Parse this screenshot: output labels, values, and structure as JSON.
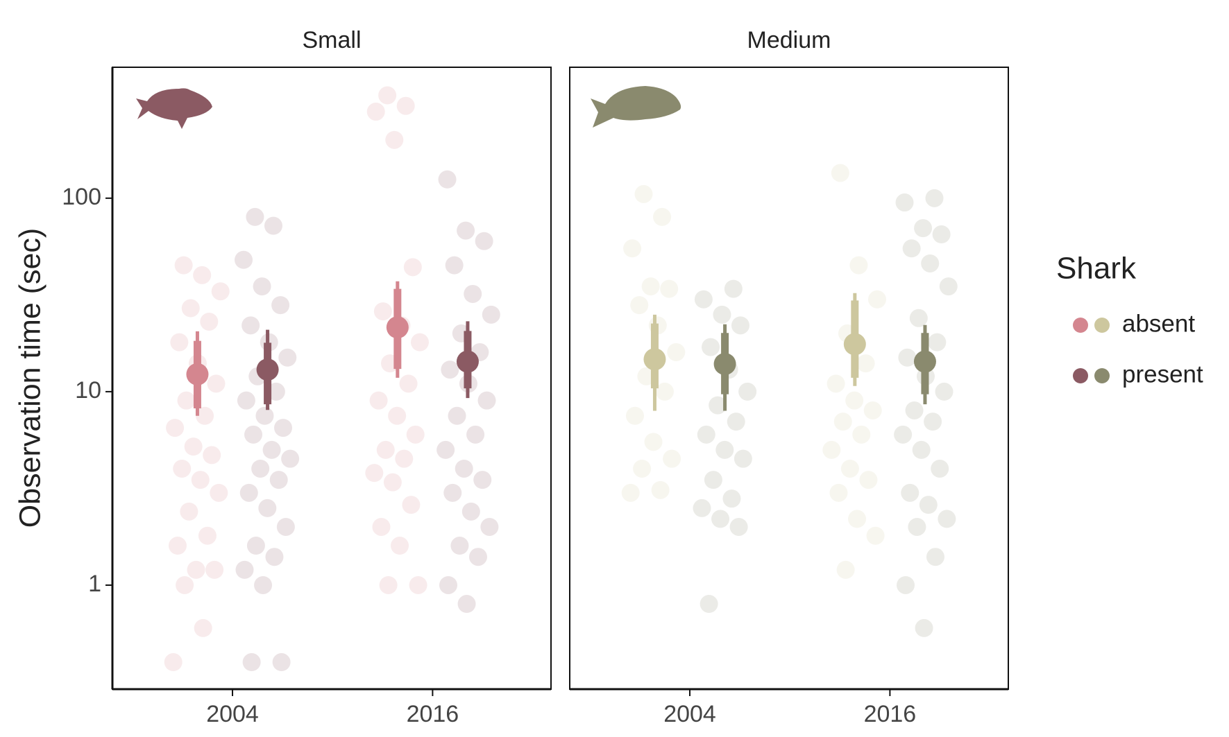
{
  "chart_data": [
    {
      "type": "pointrange",
      "title": "Small",
      "y_label": "Observation time (sec)",
      "x": [
        2004,
        2016
      ],
      "xlim": [
        1996.8,
        2023.1
      ],
      "xticks": [
        2004,
        2016
      ],
      "ylim": [
        0.29,
        475
      ],
      "yticks": [
        1,
        10,
        100
      ],
      "yscale": "log",
      "series": [
        {
          "name": "absent",
          "color": "#d4868f",
          "values": [
            12.3,
            21.5
          ],
          "inner_lower": [
            8.2,
            13.1
          ],
          "inner_upper": [
            18.3,
            34.0
          ],
          "lower": [
            7.5,
            11.8
          ],
          "upper": [
            20.5,
            37.2
          ],
          "points": [
            [
              0.4,
              0.6,
              1.0,
              1.2,
              1.2,
              1.6,
              1.8,
              2.4,
              3,
              3.5,
              4,
              4.7,
              5.2,
              6.5,
              7.5,
              9,
              11,
              14,
              18,
              23,
              27,
              33,
              40,
              45
            ],
            [
              1,
              1,
              1.6,
              2,
              2.6,
              3.4,
              3.8,
              4.5,
              5,
              6,
              7.5,
              9,
              11,
              14,
              18,
              22,
              26,
              44,
              200,
              280,
              300,
              340
            ]
          ]
        },
        {
          "name": "present",
          "color": "#8b5a63",
          "values": [
            13.0,
            14.3
          ],
          "inner_lower": [
            8.6,
            10.4
          ],
          "inner_upper": [
            17.9,
            20.6
          ],
          "lower": [
            8.05,
            9.27
          ],
          "upper": [
            20.9,
            23.1
          ],
          "points": [
            [
              0.4,
              0.4,
              1.0,
              1.2,
              1.4,
              1.6,
              2,
              2.5,
              3,
              3.5,
              4,
              4.5,
              5,
              6,
              6.5,
              7.5,
              9,
              10,
              12,
              15,
              18,
              22,
              28,
              35,
              48,
              72,
              80
            ],
            [
              0.8,
              1,
              1.4,
              1.6,
              2,
              2.4,
              3,
              3.5,
              4,
              5,
              6,
              7.5,
              9,
              11,
              13,
              16,
              20,
              25,
              32,
              45,
              60,
              68,
              125
            ]
          ]
        }
      ]
    },
    {
      "type": "pointrange",
      "title": "Medium",
      "x": [
        2004,
        2016
      ],
      "xlim": [
        1996.8,
        2023.1
      ],
      "xticks": [
        2004,
        2016
      ],
      "ylim": [
        0.29,
        475
      ],
      "yticks": [
        1,
        10,
        100
      ],
      "yscale": "log",
      "series": [
        {
          "name": "absent",
          "color": "#cdc79e",
          "values": [
            14.7,
            17.6
          ],
          "inner_lower": [
            10.4,
            11.8
          ],
          "inner_upper": [
            22.5,
            29.6
          ],
          "lower": [
            7.96,
            10.7
          ],
          "upper": [
            25.0,
            32.3
          ],
          "points": [
            [
              3,
              3.1,
              4,
              4.5,
              5.5,
              7.5,
              10,
              12,
              16,
              22,
              28,
              34,
              35,
              55,
              80,
              105
            ],
            [
              1.2,
              1.8,
              2.2,
              3,
              3.5,
              4,
              5,
              6,
              7,
              8,
              9,
              11,
              14,
              20,
              30,
              45,
              135
            ]
          ]
        },
        {
          "name": "present",
          "color": "#8a8a6e",
          "values": [
            13.9,
            14.3
          ],
          "inner_lower": [
            9.7,
            9.7
          ],
          "inner_upper": [
            20.1,
            20.1
          ],
          "lower": [
            7.96,
            8.6
          ],
          "upper": [
            22.3,
            22.1
          ],
          "points": [
            [
              0.8,
              2,
              2.2,
              2.5,
              2.8,
              3.5,
              4.5,
              5,
              6,
              7,
              8.5,
              10,
              13,
              17,
              22,
              25,
              30,
              34
            ],
            [
              0.6,
              1,
              1.4,
              2,
              2.2,
              2.6,
              3,
              4,
              5,
              6,
              7,
              8,
              10,
              12,
              15,
              18,
              24,
              35,
              46,
              55,
              65,
              70,
              95,
              100
            ]
          ]
        }
      ]
    }
  ],
  "legend": {
    "title": "Shark"
  }
}
